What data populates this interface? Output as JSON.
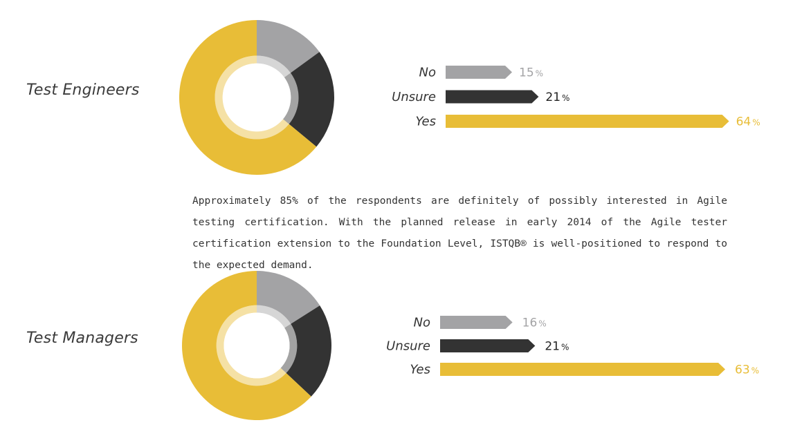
{
  "colors": {
    "no": "#a3a3a5",
    "unsure": "#333333",
    "yes": "#e8bd37"
  },
  "paragraph": "Approximately 85% of the respondents are definitely of possibly interested in Agile testing certification. With the planned release in early 2014 of the Agile tester certification extension to the Foundation Level, ISTQB® is  well-positioned to respond to the expected demand.",
  "chart_data": [
    {
      "type": "donut+bar",
      "title": "Test Engineers",
      "categories": [
        "No",
        "Unsure",
        "Yes"
      ],
      "values": [
        15,
        21,
        64
      ],
      "unit": "%"
    },
    {
      "type": "donut+bar",
      "title": "Test Managers",
      "categories": [
        "No",
        "Unsure",
        "Yes"
      ],
      "values": [
        16,
        21,
        63
      ],
      "unit": "%"
    }
  ]
}
